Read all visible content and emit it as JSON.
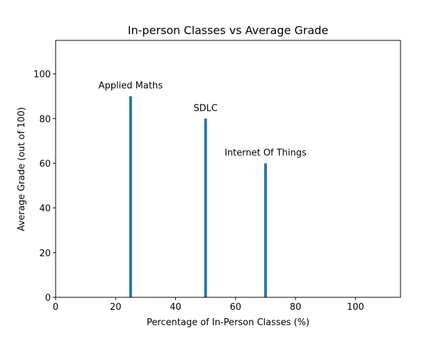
{
  "chart_data": {
    "type": "bar",
    "title": "In-person Classes vs Average Grade",
    "xlabel": "Percentage of In-Person Classes (%)",
    "ylabel": "Average Grade (out of 100)",
    "xlim": [
      0,
      115
    ],
    "ylim": [
      0,
      115
    ],
    "xticks": [
      0,
      20,
      40,
      60,
      80,
      100
    ],
    "yticks": [
      0,
      20,
      40,
      60,
      80,
      100
    ],
    "grid": false,
    "bar_color": "#1f77b4",
    "points": [
      {
        "label": "Applied Maths",
        "x": 25,
        "y": 90
      },
      {
        "label": "SDLC",
        "x": 50,
        "y": 80
      },
      {
        "label": "Internet Of Things",
        "x": 70,
        "y": 60
      }
    ]
  }
}
